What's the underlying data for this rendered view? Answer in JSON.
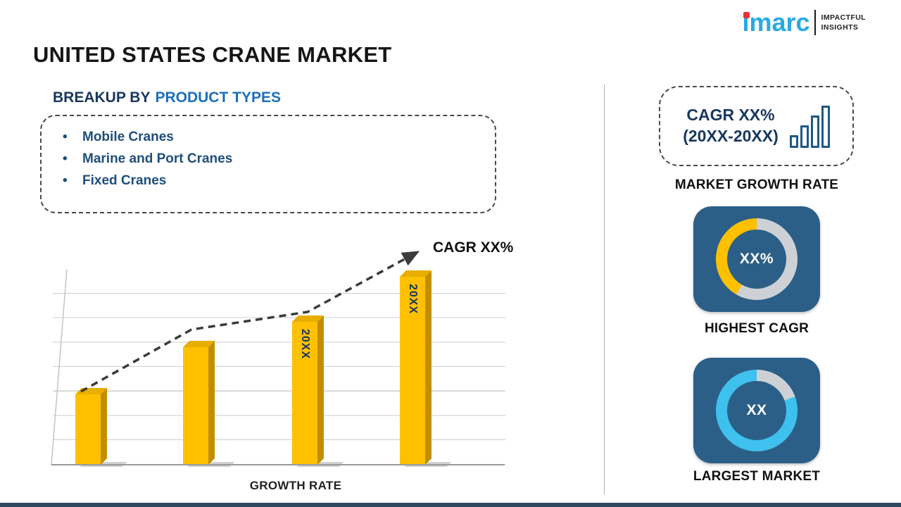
{
  "title": "UNITED STATES CRANE MARKET",
  "logo": {
    "brand": "imarc",
    "tagline_line1": "IMPACTFUL",
    "tagline_line2": "INSIGHTS"
  },
  "breakup": {
    "heading_prefix": "BREAKUP BY",
    "heading_highlight": "PRODUCT TYPES",
    "items": [
      "Mobile Cranes",
      "Marine and Port Cranes",
      "Fixed Cranes"
    ]
  },
  "chart_data": {
    "type": "bar",
    "categories": [
      "",
      "",
      "20XX",
      "20XX"
    ],
    "values": [
      36,
      60,
      73,
      96
    ],
    "ylim": [
      0,
      100
    ],
    "bar_color": "#ffc000",
    "grid": true,
    "trend_line": true,
    "trend_label": "CAGR XX%",
    "xlabel": "GROWTH RATE",
    "ylabel": ""
  },
  "right_panel": {
    "cagr_box": {
      "line1": "CAGR XX%",
      "line2": "(20XX-20XX)"
    },
    "market_growth_label": "MARKET GROWTH RATE",
    "highest_cagr": {
      "value": "XX%",
      "label": "HIGHEST CAGR",
      "ring_color": "#ffc000",
      "base_color": "#cdd1d5",
      "split_deg": 210
    },
    "largest_market": {
      "value": "XX",
      "label": "LARGEST MARKET",
      "ring_color": "#3fc1ef",
      "base_color": "#cdd1d5",
      "split_deg": 70
    }
  },
  "colors": {
    "navy": "#17375e",
    "blue": "#1c6fba",
    "card_bg": "#2c5f87",
    "bar_yellow": "#ffc000",
    "logo_cyan": "#29abe2",
    "logo_red": "#e53238"
  }
}
